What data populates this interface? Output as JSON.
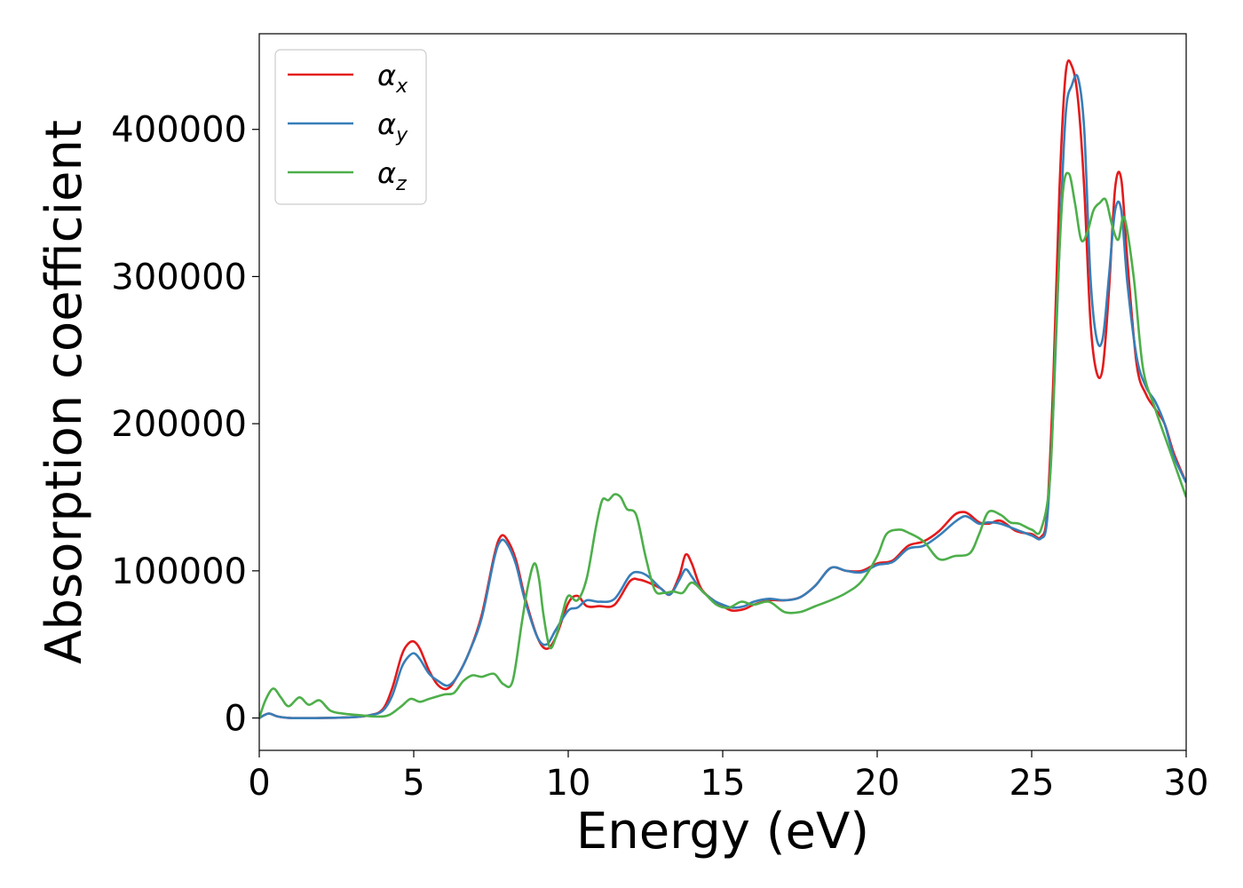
{
  "chart_data": {
    "type": "line",
    "title": "",
    "xlabel": "Energy (eV)",
    "ylabel": "Absorption coefficient",
    "xlim": [
      0,
      30
    ],
    "ylim": [
      -22000,
      465000
    ],
    "xticks": [
      0,
      5,
      10,
      15,
      20,
      25,
      30
    ],
    "yticks": [
      0,
      100000,
      200000,
      300000,
      400000
    ],
    "grid": false,
    "legend_position": "top-left",
    "series": [
      {
        "name": "α",
        "subscript": "x",
        "color": "#e41a1c",
        "x": [
          0,
          0.3,
          0.6,
          1,
          2,
          3,
          3.6,
          4,
          4.3,
          4.6,
          4.8,
          5,
          5.2,
          5.5,
          5.8,
          6.1,
          6.4,
          6.8,
          7.2,
          7.6,
          7.8,
          8,
          8.3,
          8.6,
          9,
          9.3,
          9.6,
          10,
          10.3,
          10.6,
          11,
          11.5,
          12,
          12.3,
          12.6,
          13,
          13.3,
          13.6,
          13.8,
          14,
          14.3,
          14.7,
          15,
          15.3,
          15.7,
          16,
          16.5,
          17,
          17.5,
          18,
          18.5,
          19,
          19.5,
          20,
          20.5,
          21,
          21.5,
          22,
          22.5,
          22.8,
          23,
          23.3,
          23.6,
          24,
          24.5,
          25,
          25.3,
          25.5,
          25.7,
          25.9,
          26.1,
          26.3,
          26.5,
          26.7,
          26.9,
          27.1,
          27.3,
          27.5,
          27.7,
          27.9,
          28.1,
          28.4,
          28.7,
          29,
          29.3,
          29.6,
          30
        ],
        "values": [
          0,
          3000,
          1000,
          0,
          0,
          500,
          2000,
          6000,
          20000,
          42000,
          50000,
          52000,
          47000,
          32000,
          22000,
          20000,
          28000,
          45000,
          70000,
          110000,
          123000,
          122000,
          108000,
          82000,
          55000,
          47000,
          55000,
          78000,
          83000,
          76000,
          76000,
          77000,
          93000,
          94000,
          92000,
          88000,
          84000,
          97000,
          111000,
          105000,
          88000,
          80000,
          76000,
          73000,
          74000,
          77000,
          80000,
          80000,
          82000,
          90000,
          102000,
          100000,
          100000,
          105000,
          107000,
          117000,
          120000,
          127000,
          138000,
          140000,
          138000,
          133000,
          132000,
          134000,
          127000,
          125000,
          123000,
          140000,
          230000,
          360000,
          438000,
          443000,
          420000,
          360000,
          270000,
          235000,
          238000,
          290000,
          360000,
          366000,
          310000,
          240000,
          220000,
          210000,
          200000,
          180000,
          160000
        ]
      },
      {
        "name": "α",
        "subscript": "y",
        "color": "#377eb8",
        "x": [
          0,
          0.3,
          0.6,
          1,
          2,
          3,
          3.6,
          4,
          4.3,
          4.6,
          4.8,
          5,
          5.2,
          5.5,
          5.8,
          6.1,
          6.4,
          6.8,
          7.2,
          7.6,
          7.8,
          8,
          8.3,
          8.6,
          9,
          9.3,
          9.6,
          10,
          10.3,
          10.6,
          11,
          11.5,
          12,
          12.3,
          12.6,
          13,
          13.3,
          13.6,
          13.8,
          14,
          14.3,
          14.7,
          15,
          15.3,
          15.7,
          16,
          16.5,
          17,
          17.5,
          18,
          18.5,
          19,
          19.5,
          20,
          20.5,
          21,
          21.5,
          22,
          22.5,
          22.8,
          23,
          23.3,
          23.6,
          24,
          24.5,
          25,
          25.3,
          25.5,
          25.7,
          25.9,
          26.1,
          26.3,
          26.5,
          26.7,
          26.9,
          27.1,
          27.3,
          27.5,
          27.7,
          27.9,
          28.1,
          28.4,
          28.7,
          29,
          29.3,
          29.6,
          30
        ],
        "values": [
          0,
          3000,
          1000,
          0,
          0,
          500,
          2000,
          5000,
          15000,
          34000,
          41000,
          44000,
          40000,
          30000,
          25000,
          22000,
          28000,
          45000,
          68000,
          108000,
          120000,
          119000,
          105000,
          80000,
          55000,
          50000,
          60000,
          73000,
          75000,
          80000,
          79000,
          81000,
          97000,
          99000,
          96000,
          88000,
          84000,
          94000,
          101000,
          96000,
          87000,
          80000,
          77000,
          75000,
          76000,
          79000,
          81000,
          80000,
          82000,
          90000,
          102000,
          100000,
          99000,
          104000,
          106000,
          115000,
          117000,
          124000,
          133000,
          137000,
          136000,
          132000,
          133000,
          132000,
          128000,
          124000,
          122000,
          135000,
          210000,
          320000,
          410000,
          430000,
          435000,
          400000,
          300000,
          258000,
          258000,
          300000,
          345000,
          345000,
          295000,
          245000,
          225000,
          215000,
          200000,
          178000,
          160000
        ]
      },
      {
        "name": "α",
        "subscript": "z",
        "color": "#4daf4a",
        "x": [
          0,
          0.2,
          0.45,
          0.7,
          0.95,
          1.3,
          1.6,
          1.95,
          2.3,
          2.7,
          3.2,
          3.8,
          4.2,
          4.6,
          4.9,
          5.2,
          5.5,
          6,
          6.3,
          6.6,
          6.9,
          7.2,
          7.6,
          7.9,
          8.2,
          8.5,
          8.7,
          8.9,
          9.05,
          9.2,
          9.4,
          9.6,
          9.8,
          10,
          10.3,
          10.6,
          10.9,
          11.1,
          11.3,
          11.5,
          11.7,
          11.9,
          12.2,
          12.5,
          12.8,
          13.1,
          13.4,
          13.7,
          14,
          14.4,
          14.8,
          15.2,
          15.6,
          16,
          16.5,
          17,
          17.5,
          18,
          18.5,
          19,
          19.5,
          20,
          20.3,
          20.7,
          21,
          21.5,
          22,
          22.5,
          23,
          23.3,
          23.6,
          24,
          24.3,
          24.6,
          25,
          25.3,
          25.6,
          25.8,
          26,
          26.2,
          26.4,
          26.6,
          26.8,
          27,
          27.2,
          27.4,
          27.6,
          27.8,
          28,
          28.3,
          28.6,
          29,
          29.5,
          30
        ],
        "values": [
          0,
          12000,
          20000,
          14000,
          8000,
          14000,
          9000,
          12000,
          5000,
          3000,
          2000,
          1000,
          2000,
          8000,
          13000,
          11000,
          13000,
          16000,
          17000,
          25000,
          29000,
          28000,
          30000,
          23000,
          25000,
          65000,
          90000,
          105000,
          95000,
          70000,
          48000,
          55000,
          70000,
          83000,
          80000,
          95000,
          130000,
          148000,
          148000,
          152000,
          150000,
          142000,
          138000,
          110000,
          87000,
          85000,
          86000,
          85000,
          92000,
          85000,
          77000,
          75000,
          79000,
          77000,
          79000,
          72000,
          72000,
          76000,
          80000,
          85000,
          93000,
          110000,
          125000,
          128000,
          126000,
          120000,
          108000,
          110000,
          112000,
          125000,
          140000,
          138000,
          133000,
          132000,
          128000,
          128000,
          165000,
          270000,
          355000,
          370000,
          350000,
          325000,
          330000,
          345000,
          350000,
          352000,
          335000,
          325000,
          340000,
          300000,
          238000,
          210000,
          180000,
          150000
        ]
      }
    ]
  }
}
